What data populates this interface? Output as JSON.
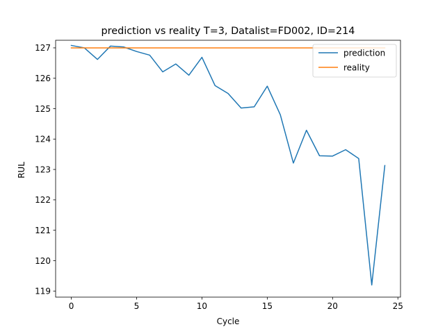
{
  "chart_data": {
    "type": "line",
    "title": "prediction vs reality T=3, Datalist=FD002, ID=214",
    "xlabel": "Cycle",
    "ylabel": "RUL",
    "xlim": [
      -1.2,
      25.2
    ],
    "ylim": [
      118.8,
      127.25
    ],
    "xticks": [
      0,
      5,
      10,
      15,
      20,
      25
    ],
    "yticks": [
      119,
      120,
      121,
      122,
      123,
      124,
      125,
      126,
      127
    ],
    "grid": false,
    "legend_position": "top-right",
    "x": [
      0,
      1,
      2,
      3,
      4,
      5,
      6,
      7,
      8,
      9,
      10,
      11,
      12,
      13,
      14,
      15,
      16,
      17,
      18,
      19,
      20,
      21,
      22,
      23,
      24
    ],
    "series": [
      {
        "name": "prediction",
        "color": "#1f77b4",
        "values": [
          127.08,
          127.0,
          126.62,
          127.06,
          127.03,
          126.88,
          126.76,
          126.21,
          126.47,
          126.1,
          126.69,
          125.76,
          125.5,
          125.02,
          125.06,
          125.74,
          124.8,
          123.21,
          124.29,
          123.45,
          123.44,
          123.65,
          123.36,
          119.2,
          123.13
        ]
      },
      {
        "name": "reality",
        "color": "#ff7f0e",
        "values": [
          127,
          127,
          127,
          127,
          127,
          127,
          127,
          127,
          127,
          127,
          127,
          127,
          127,
          127,
          127,
          127,
          127,
          127,
          127,
          127,
          127,
          127,
          127,
          127,
          127
        ]
      }
    ]
  }
}
